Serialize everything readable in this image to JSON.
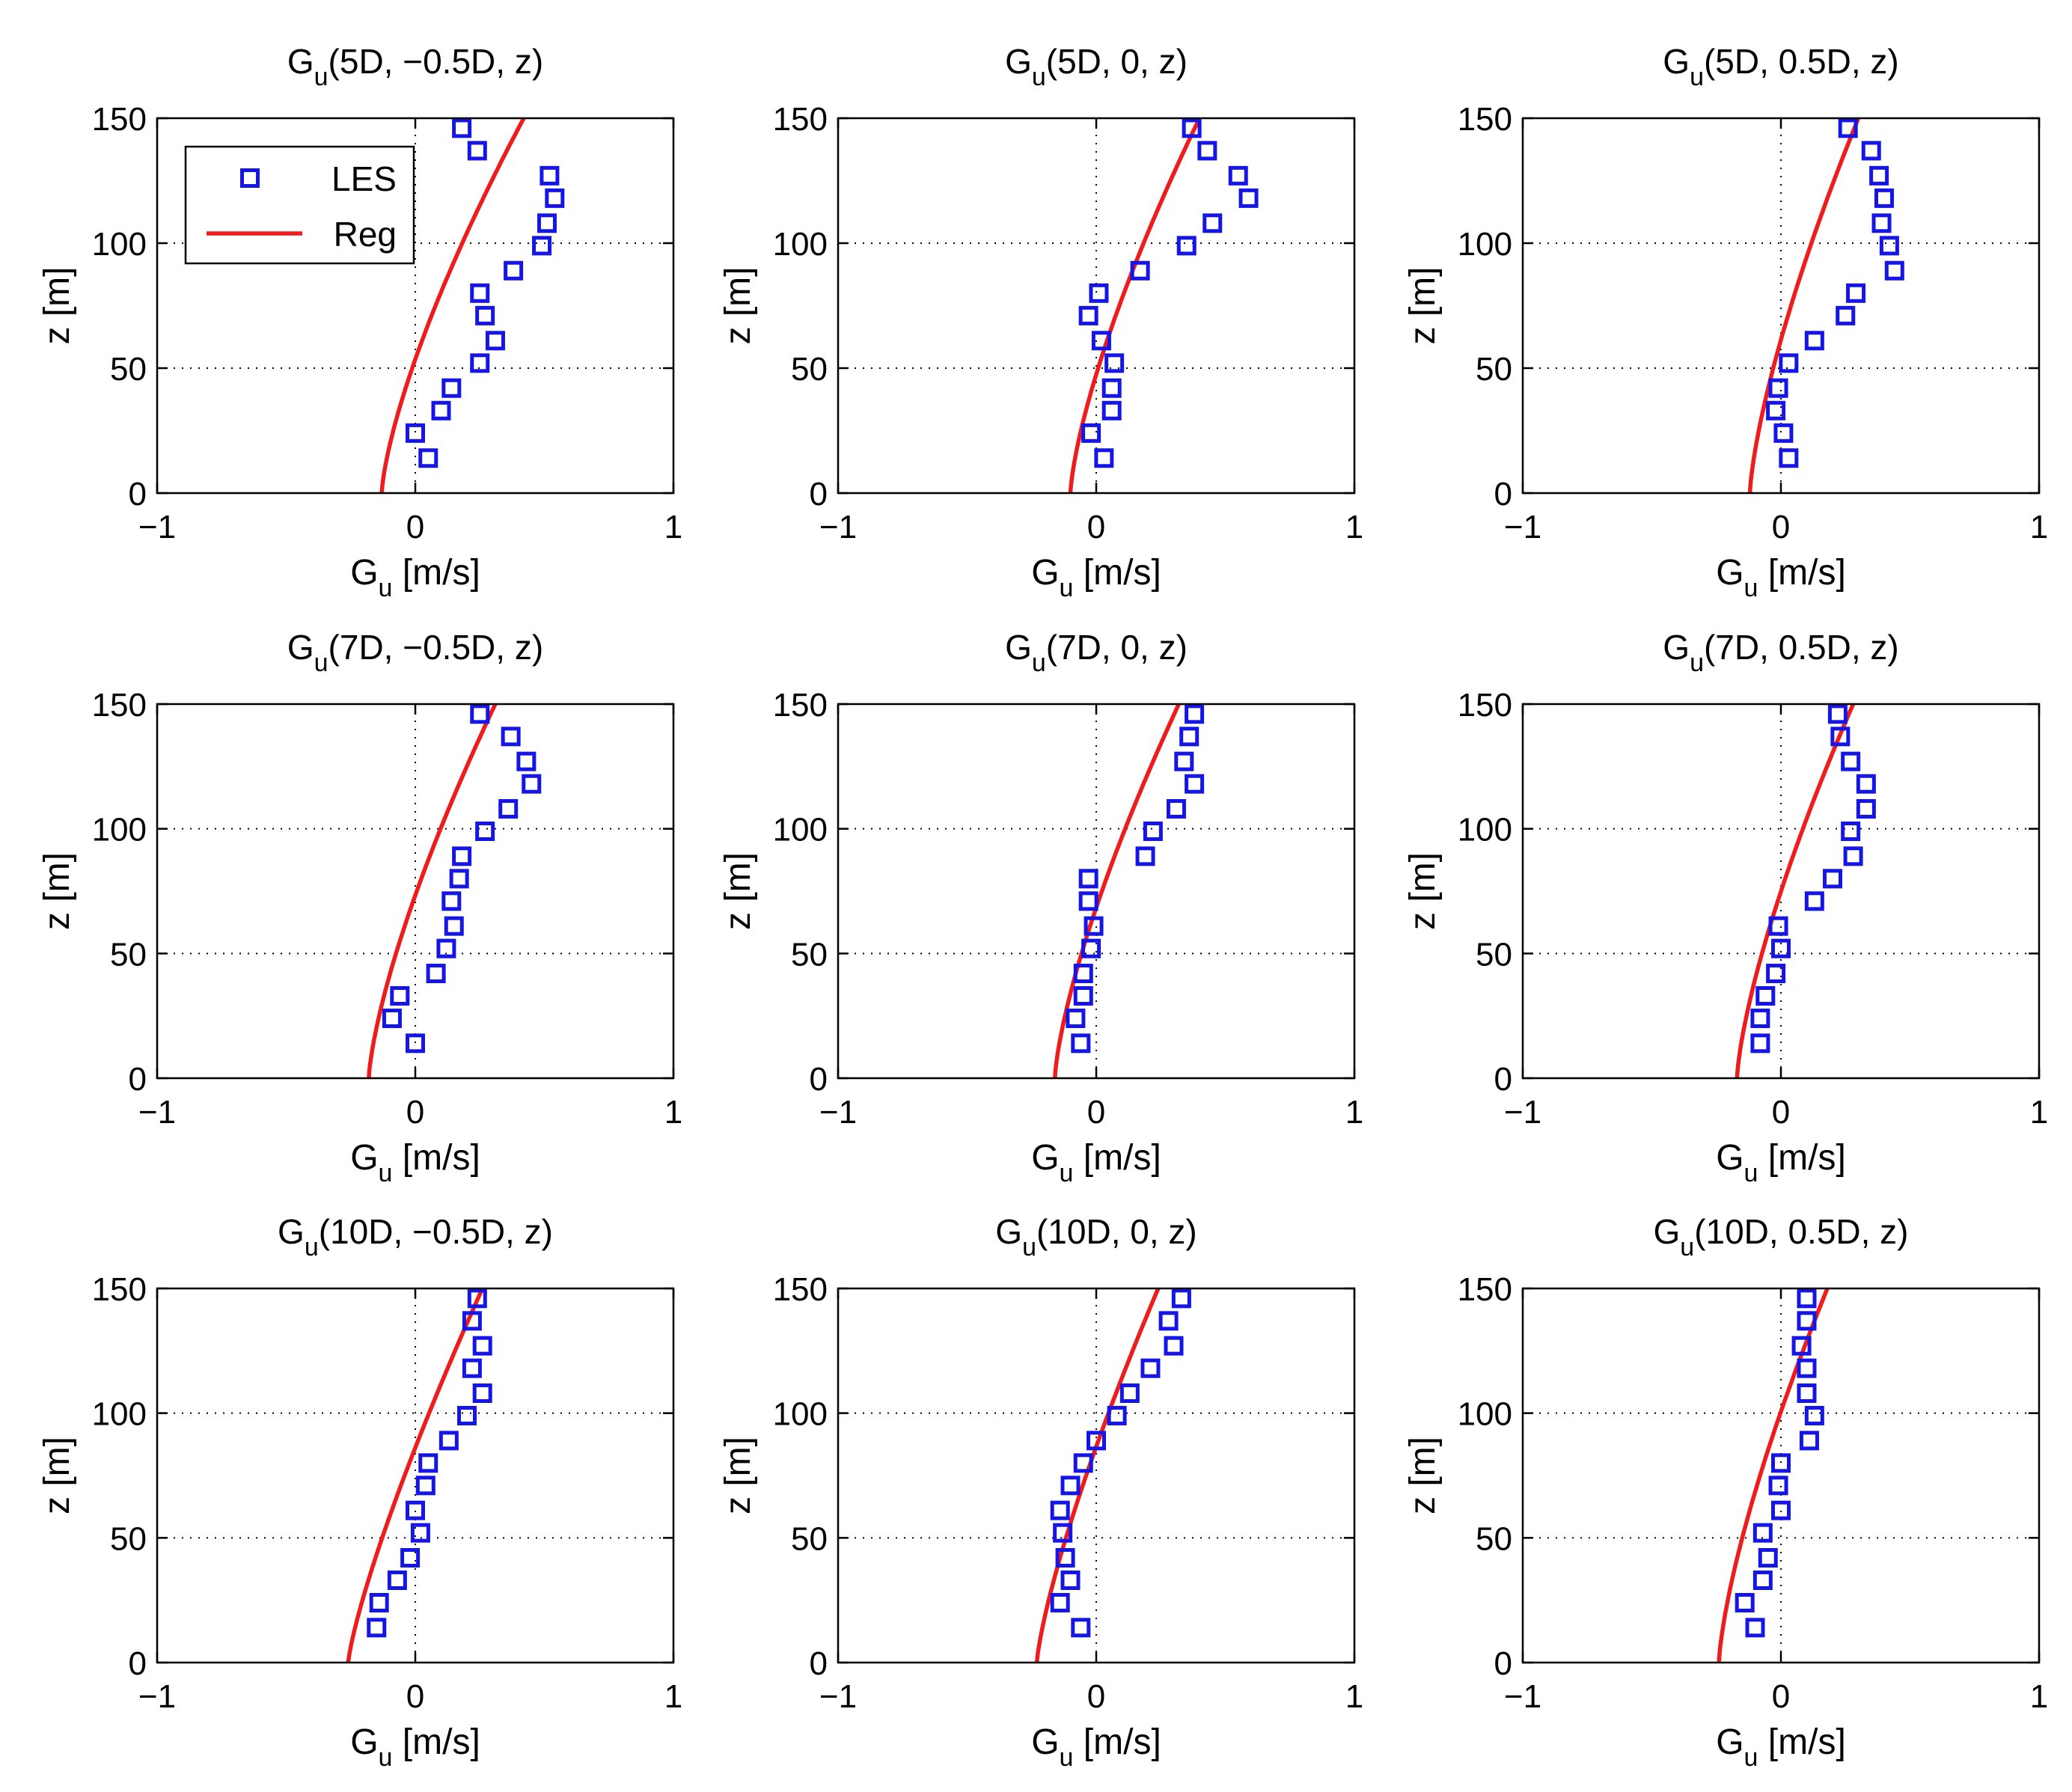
{
  "chart_data": {
    "type": "scatter",
    "layout": "3x3 grid",
    "legend": {
      "placement": "top-left of first panel",
      "entries": [
        "LES",
        "Reg"
      ]
    },
    "colors": {
      "les": "#1515e6",
      "reg": "#ee1c1c"
    },
    "panels": [
      {
        "title": {
          "main": "G",
          "sub": "u",
          "rest": "(5D, −0.5D, z)"
        },
        "xlabel": {
          "main": "G",
          "sub": "u",
          "rest": " [m/s]"
        },
        "ylabel": "z [m]",
        "xlim": [
          -1,
          1
        ],
        "ylim": [
          0,
          150
        ],
        "xticks": [
          "−1",
          "0",
          "1"
        ],
        "yticks": [
          "0",
          "50",
          "100",
          "150"
        ],
        "series": [
          {
            "name": "LES",
            "type": "scatter",
            "points": [
              [
                0.05,
                14
              ],
              [
                0.0,
                24
              ],
              [
                0.1,
                33
              ],
              [
                0.14,
                42
              ],
              [
                0.25,
                52
              ],
              [
                0.31,
                61
              ],
              [
                0.27,
                71
              ],
              [
                0.25,
                80
              ],
              [
                0.38,
                89
              ],
              [
                0.49,
                99
              ],
              [
                0.51,
                108
              ],
              [
                0.54,
                118
              ],
              [
                0.52,
                127
              ],
              [
                0.24,
                137
              ],
              [
                0.18,
                146
              ]
            ]
          },
          {
            "name": "Reg",
            "type": "line",
            "a": -0.13,
            "b": 0.55,
            "p": 1.4
          }
        ]
      },
      {
        "title": {
          "main": "G",
          "sub": "u",
          "rest": "(5D, 0, z)"
        },
        "xlabel": {
          "main": "G",
          "sub": "u",
          "rest": " [m/s]"
        },
        "ylabel": "z [m]",
        "xlim": [
          -1,
          1
        ],
        "ylim": [
          0,
          150
        ],
        "xticks": [
          "−1",
          "0",
          "1"
        ],
        "yticks": [
          "0",
          "50",
          "100",
          "150"
        ],
        "series": [
          {
            "name": "LES",
            "type": "scatter",
            "points": [
              [
                0.03,
                14
              ],
              [
                -0.02,
                24
              ],
              [
                0.06,
                33
              ],
              [
                0.06,
                42
              ],
              [
                0.07,
                52
              ],
              [
                0.02,
                61
              ],
              [
                -0.03,
                71
              ],
              [
                0.01,
                80
              ],
              [
                0.17,
                89
              ],
              [
                0.35,
                99
              ],
              [
                0.45,
                108
              ],
              [
                0.59,
                118
              ],
              [
                0.55,
                127
              ],
              [
                0.43,
                137
              ],
              [
                0.37,
                146
              ]
            ]
          },
          {
            "name": "Reg",
            "type": "line",
            "a": -0.1,
            "b": 0.5,
            "p": 1.4
          }
        ]
      },
      {
        "title": {
          "main": "G",
          "sub": "u",
          "rest": "(5D, 0.5D, z)"
        },
        "xlabel": {
          "main": "G",
          "sub": "u",
          "rest": " [m/s]"
        },
        "ylabel": "z [m]",
        "xlim": [
          -1,
          1
        ],
        "ylim": [
          0,
          150
        ],
        "xticks": [
          "−1",
          "0",
          "1"
        ],
        "yticks": [
          "0",
          "50",
          "100",
          "150"
        ],
        "series": [
          {
            "name": "LES",
            "type": "scatter",
            "points": [
              [
                0.03,
                14
              ],
              [
                0.01,
                24
              ],
              [
                -0.02,
                33
              ],
              [
                -0.01,
                42
              ],
              [
                0.03,
                52
              ],
              [
                0.13,
                61
              ],
              [
                0.25,
                71
              ],
              [
                0.29,
                80
              ],
              [
                0.44,
                89
              ],
              [
                0.42,
                99
              ],
              [
                0.39,
                108
              ],
              [
                0.4,
                118
              ],
              [
                0.38,
                127
              ],
              [
                0.35,
                137
              ],
              [
                0.26,
                146
              ]
            ]
          },
          {
            "name": "Reg",
            "type": "line",
            "a": -0.12,
            "b": 0.42,
            "p": 1.4
          }
        ]
      },
      {
        "title": {
          "main": "G",
          "sub": "u",
          "rest": "(7D, −0.5D, z)"
        },
        "xlabel": {
          "main": "G",
          "sub": "u",
          "rest": " [m/s]"
        },
        "ylabel": "z [m]",
        "xlim": [
          -1,
          1
        ],
        "ylim": [
          0,
          150
        ],
        "xticks": [
          "−1",
          "0",
          "1"
        ],
        "yticks": [
          "0",
          "50",
          "100",
          "150"
        ],
        "series": [
          {
            "name": "LES",
            "type": "scatter",
            "points": [
              [
                0.0,
                14
              ],
              [
                -0.09,
                24
              ],
              [
                -0.06,
                33
              ],
              [
                0.08,
                42
              ],
              [
                0.12,
                52
              ],
              [
                0.15,
                61
              ],
              [
                0.14,
                71
              ],
              [
                0.17,
                80
              ],
              [
                0.18,
                89
              ],
              [
                0.27,
                99
              ],
              [
                0.36,
                108
              ],
              [
                0.45,
                118
              ],
              [
                0.43,
                127
              ],
              [
                0.37,
                137
              ],
              [
                0.25,
                146
              ]
            ]
          },
          {
            "name": "Reg",
            "type": "line",
            "a": -0.18,
            "b": 0.49,
            "p": 1.4
          }
        ]
      },
      {
        "title": {
          "main": "G",
          "sub": "u",
          "rest": "(7D, 0, z)"
        },
        "xlabel": {
          "main": "G",
          "sub": "u",
          "rest": " [m/s]"
        },
        "ylabel": "z [m]",
        "xlim": [
          -1,
          1
        ],
        "ylim": [
          0,
          150
        ],
        "xticks": [
          "−1",
          "0",
          "1"
        ],
        "yticks": [
          "0",
          "50",
          "100",
          "150"
        ],
        "series": [
          {
            "name": "LES",
            "type": "scatter",
            "points": [
              [
                -0.06,
                14
              ],
              [
                -0.08,
                24
              ],
              [
                -0.05,
                33
              ],
              [
                -0.05,
                42
              ],
              [
                -0.02,
                52
              ],
              [
                -0.01,
                61
              ],
              [
                -0.03,
                71
              ],
              [
                -0.03,
                80
              ],
              [
                0.19,
                89
              ],
              [
                0.22,
                99
              ],
              [
                0.31,
                108
              ],
              [
                0.38,
                118
              ],
              [
                0.34,
                127
              ],
              [
                0.36,
                137
              ],
              [
                0.38,
                146
              ]
            ]
          },
          {
            "name": "Reg",
            "type": "line",
            "a": -0.16,
            "b": 0.48,
            "p": 1.4
          }
        ]
      },
      {
        "title": {
          "main": "G",
          "sub": "u",
          "rest": "(7D, 0.5D, z)"
        },
        "xlabel": {
          "main": "G",
          "sub": "u",
          "rest": " [m/s]"
        },
        "ylabel": "z [m]",
        "xlim": [
          -1,
          1
        ],
        "ylim": [
          0,
          150
        ],
        "xticks": [
          "−1",
          "0",
          "1"
        ],
        "yticks": [
          "0",
          "50",
          "100",
          "150"
        ],
        "series": [
          {
            "name": "LES",
            "type": "scatter",
            "points": [
              [
                -0.08,
                14
              ],
              [
                -0.08,
                24
              ],
              [
                -0.06,
                33
              ],
              [
                -0.02,
                42
              ],
              [
                0.0,
                52
              ],
              [
                -0.01,
                61
              ],
              [
                0.13,
                71
              ],
              [
                0.2,
                80
              ],
              [
                0.28,
                89
              ],
              [
                0.27,
                99
              ],
              [
                0.33,
                108
              ],
              [
                0.33,
                118
              ],
              [
                0.27,
                127
              ],
              [
                0.23,
                137
              ],
              [
                0.22,
                146
              ]
            ]
          },
          {
            "name": "Reg",
            "type": "line",
            "a": -0.17,
            "b": 0.45,
            "p": 1.4
          }
        ]
      },
      {
        "title": {
          "main": "G",
          "sub": "u",
          "rest": "(10D, −0.5D, z)"
        },
        "xlabel": {
          "main": "G",
          "sub": "u",
          "rest": " [m/s]"
        },
        "ylabel": "z [m]",
        "xlim": [
          -1,
          1
        ],
        "ylim": [
          0,
          150
        ],
        "xticks": [
          "−1",
          "0",
          "1"
        ],
        "yticks": [
          "0",
          "50",
          "100",
          "150"
        ],
        "series": [
          {
            "name": "LES",
            "type": "scatter",
            "points": [
              [
                -0.15,
                14
              ],
              [
                -0.14,
                24
              ],
              [
                -0.07,
                33
              ],
              [
                -0.02,
                42
              ],
              [
                0.02,
                52
              ],
              [
                0.0,
                61
              ],
              [
                0.04,
                71
              ],
              [
                0.05,
                80
              ],
              [
                0.13,
                89
              ],
              [
                0.2,
                99
              ],
              [
                0.26,
                108
              ],
              [
                0.22,
                118
              ],
              [
                0.26,
                127
              ],
              [
                0.22,
                137
              ],
              [
                0.24,
                146
              ]
            ]
          },
          {
            "name": "Reg",
            "type": "line",
            "a": -0.26,
            "b": 0.52,
            "p": 1.25
          }
        ]
      },
      {
        "title": {
          "main": "G",
          "sub": "u",
          "rest": "(10D, 0, z)"
        },
        "xlabel": {
          "main": "G",
          "sub": "u",
          "rest": " [m/s]"
        },
        "ylabel": "z [m]",
        "xlim": [
          -1,
          1
        ],
        "ylim": [
          0,
          150
        ],
        "xticks": [
          "−1",
          "0",
          "1"
        ],
        "yticks": [
          "0",
          "50",
          "100",
          "150"
        ],
        "series": [
          {
            "name": "LES",
            "type": "scatter",
            "points": [
              [
                -0.06,
                14
              ],
              [
                -0.14,
                24
              ],
              [
                -0.1,
                33
              ],
              [
                -0.12,
                42
              ],
              [
                -0.13,
                52
              ],
              [
                -0.14,
                61
              ],
              [
                -0.1,
                71
              ],
              [
                -0.05,
                80
              ],
              [
                0.0,
                89
              ],
              [
                0.08,
                99
              ],
              [
                0.13,
                108
              ],
              [
                0.21,
                118
              ],
              [
                0.3,
                127
              ],
              [
                0.28,
                137
              ],
              [
                0.33,
                146
              ]
            ]
          },
          {
            "name": "Reg",
            "type": "line",
            "a": -0.23,
            "b": 0.47,
            "p": 1.3
          }
        ]
      },
      {
        "title": {
          "main": "G",
          "sub": "u",
          "rest": "(10D, 0.5D, z)"
        },
        "xlabel": {
          "main": "G",
          "sub": "u",
          "rest": " [m/s]"
        },
        "ylabel": "z [m]",
        "xlim": [
          -1,
          1
        ],
        "ylim": [
          0,
          150
        ],
        "xticks": [
          "−1",
          "0",
          "1"
        ],
        "yticks": [
          "0",
          "50",
          "100",
          "150"
        ],
        "series": [
          {
            "name": "LES",
            "type": "scatter",
            "points": [
              [
                -0.1,
                14
              ],
              [
                -0.14,
                24
              ],
              [
                -0.07,
                33
              ],
              [
                -0.05,
                42
              ],
              [
                -0.07,
                52
              ],
              [
                0.0,
                61
              ],
              [
                -0.01,
                71
              ],
              [
                0.0,
                80
              ],
              [
                0.11,
                89
              ],
              [
                0.13,
                99
              ],
              [
                0.1,
                108
              ],
              [
                0.1,
                118
              ],
              [
                0.08,
                127
              ],
              [
                0.1,
                137
              ],
              [
                0.1,
                146
              ]
            ]
          },
          {
            "name": "Reg",
            "type": "line",
            "a": -0.24,
            "b": 0.42,
            "p": 1.4
          }
        ]
      }
    ]
  }
}
